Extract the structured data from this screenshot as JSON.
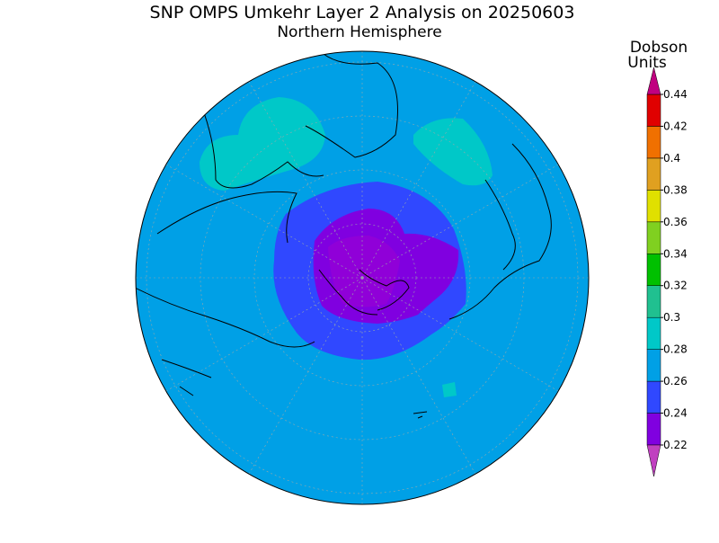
{
  "title": "SNP OMPS Umkehr Layer 2 Analysis on 20250603",
  "subtitle": "Northern Hemisphere",
  "colorbar": {
    "label_lines": [
      "Dobson",
      "Units"
    ],
    "ticks": [
      0.22,
      0.24,
      0.26,
      0.28,
      0.3,
      0.32,
      0.34,
      0.36,
      0.38,
      0.4,
      0.42,
      0.44
    ],
    "colors": [
      "#c040c0",
      "#8000e0",
      "#3048ff",
      "#00a0e6",
      "#00c8c8",
      "#20c090",
      "#00c000",
      "#80d020",
      "#e0e000",
      "#e0a020",
      "#f07000",
      "#e00000",
      "#c00080"
    ]
  }
}
